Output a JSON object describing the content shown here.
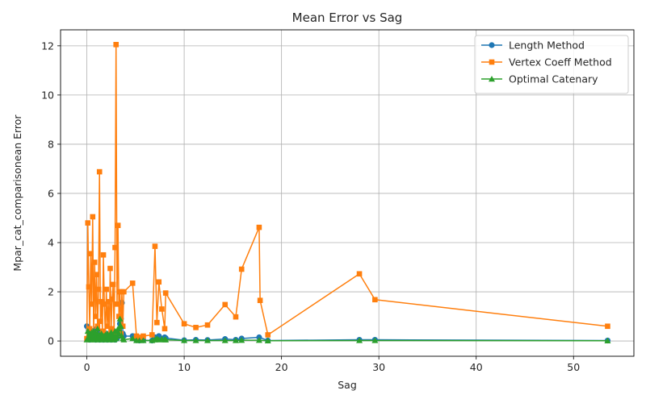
{
  "chart_data": {
    "type": "line",
    "title": "Mean Error vs Sag",
    "xlabel": "Sag",
    "ylabel": "Mpar_cat_comparisonean Error",
    "xlim": [
      -2.7,
      56.2
    ],
    "ylim": [
      -0.62,
      12.65
    ],
    "xticks": [
      0,
      10,
      20,
      30,
      40,
      50
    ],
    "yticks": [
      0,
      2,
      4,
      6,
      8,
      10,
      12
    ],
    "grid": true,
    "legend_position": "top-right",
    "series": [
      {
        "name": "Length Method",
        "color": "#1f77b4",
        "marker": "circle",
        "x": [
          0.0,
          0.1,
          0.2,
          0.3,
          0.4,
          0.5,
          0.6,
          0.7,
          0.8,
          0.9,
          1.0,
          1.1,
          1.2,
          1.3,
          1.4,
          1.5,
          1.6,
          1.7,
          1.8,
          1.9,
          2.0,
          2.1,
          2.2,
          2.3,
          2.4,
          2.5,
          2.6,
          2.7,
          2.8,
          2.9,
          3.0,
          3.1,
          3.2,
          3.3,
          3.4,
          3.5,
          3.6,
          3.7,
          3.8,
          4.7,
          5.1,
          5.4,
          5.8,
          6.7,
          7.0,
          7.2,
          7.4,
          7.7,
          8.0,
          8.1,
          10.0,
          11.2,
          12.4,
          14.2,
          15.3,
          15.9,
          17.7,
          18.6,
          28.0,
          29.6,
          53.5
        ],
        "y": [
          0.6,
          0.1,
          0.45,
          0.05,
          0.3,
          0.15,
          0.4,
          0.1,
          0.3,
          0.05,
          0.5,
          0.1,
          0.35,
          0.05,
          0.25,
          0.1,
          0.3,
          0.05,
          0.2,
          0.1,
          0.3,
          0.05,
          0.25,
          0.1,
          0.15,
          0.05,
          0.3,
          0.1,
          0.2,
          0.05,
          0.35,
          0.1,
          0.25,
          0.4,
          0.7,
          0.9,
          1.55,
          0.3,
          0.2,
          0.2,
          0.03,
          0.02,
          0.03,
          0.02,
          0.15,
          0.1,
          0.2,
          0.1,
          0.15,
          0.12,
          0.03,
          0.05,
          0.04,
          0.08,
          0.05,
          0.1,
          0.15,
          0.02,
          0.05,
          0.05,
          0.02
        ]
      },
      {
        "name": "Vertex Coeff Method",
        "color": "#ff7f0e",
        "marker": "square",
        "x": [
          0.0,
          0.1,
          0.2,
          0.3,
          0.4,
          0.5,
          0.6,
          0.7,
          0.8,
          0.9,
          1.0,
          1.1,
          1.2,
          1.3,
          1.4,
          1.5,
          1.6,
          1.7,
          1.8,
          1.9,
          2.0,
          2.1,
          2.2,
          2.3,
          2.4,
          2.5,
          2.6,
          2.7,
          2.8,
          2.9,
          3.0,
          3.1,
          3.2,
          3.3,
          3.4,
          3.5,
          3.6,
          3.7,
          3.8,
          4.7,
          5.1,
          5.4,
          5.8,
          6.7,
          7.0,
          7.2,
          7.4,
          7.7,
          8.0,
          8.1,
          10.0,
          11.2,
          12.4,
          14.2,
          15.3,
          15.9,
          17.7,
          17.8,
          18.6,
          28.0,
          29.6,
          53.5
        ],
        "y": [
          0.1,
          4.8,
          2.2,
          0.5,
          3.55,
          1.5,
          5.05,
          0.3,
          3.2,
          1.0,
          2.7,
          0.6,
          2.1,
          6.88,
          0.8,
          1.6,
          0.4,
          3.5,
          1.5,
          0.2,
          2.1,
          0.6,
          1.6,
          0.15,
          2.95,
          0.5,
          1.7,
          2.3,
          0.3,
          3.8,
          12.05,
          1.5,
          4.7,
          1.0,
          2.0,
          0.3,
          2.0,
          0.6,
          2.0,
          2.35,
          0.2,
          0.15,
          0.2,
          0.25,
          3.85,
          0.75,
          2.4,
          1.3,
          0.5,
          1.95,
          0.7,
          0.55,
          0.65,
          1.48,
          0.98,
          2.92,
          4.62,
          1.65,
          0.25,
          2.73,
          1.68,
          0.6
        ]
      },
      {
        "name": "Optimal Catenary",
        "color": "#2ca02c",
        "marker": "triangle",
        "x": [
          0.0,
          0.1,
          0.2,
          0.3,
          0.4,
          0.5,
          0.6,
          0.7,
          0.8,
          0.9,
          1.0,
          1.1,
          1.2,
          1.3,
          1.4,
          1.5,
          1.6,
          1.7,
          1.8,
          1.9,
          2.0,
          2.1,
          2.2,
          2.3,
          2.4,
          2.5,
          2.6,
          2.7,
          2.8,
          2.9,
          3.0,
          3.1,
          3.2,
          3.3,
          3.4,
          3.5,
          3.6,
          3.7,
          3.8,
          4.7,
          5.1,
          5.4,
          5.8,
          6.7,
          7.0,
          7.2,
          7.4,
          7.7,
          8.0,
          8.1,
          10.0,
          11.2,
          12.4,
          14.2,
          15.3,
          15.9,
          17.7,
          18.6,
          28.0,
          29.6,
          53.5
        ],
        "y": [
          0.05,
          0.4,
          0.1,
          0.3,
          0.05,
          0.35,
          0.1,
          0.4,
          0.05,
          0.3,
          0.1,
          0.5,
          0.05,
          0.25,
          0.1,
          0.3,
          0.05,
          0.2,
          0.1,
          0.25,
          0.05,
          0.3,
          0.1,
          0.2,
          0.05,
          0.35,
          0.1,
          0.2,
          0.05,
          0.4,
          0.1,
          0.2,
          0.5,
          0.3,
          0.9,
          0.6,
          0.2,
          0.1,
          0.05,
          0.1,
          0.02,
          0.02,
          0.02,
          0.02,
          0.05,
          0.1,
          0.05,
          0.08,
          0.05,
          0.05,
          0.02,
          0.02,
          0.02,
          0.02,
          0.02,
          0.03,
          0.03,
          0.01,
          0.02,
          0.02,
          0.01
        ]
      }
    ]
  }
}
